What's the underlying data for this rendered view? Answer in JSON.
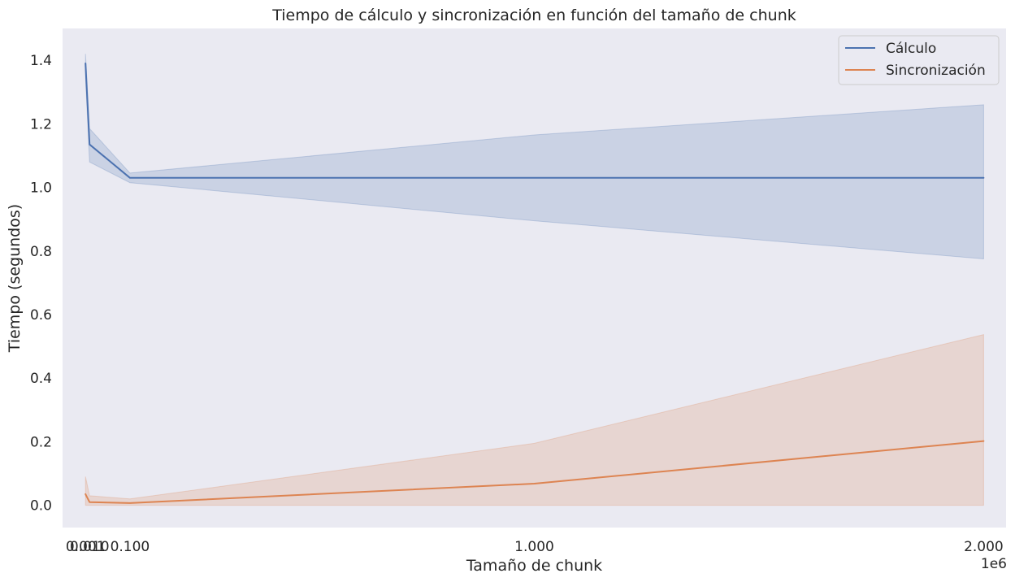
{
  "chart_data": {
    "type": "line",
    "title": "Tiempo de cálculo y sincronización en función del tamaño de chunk",
    "xlabel": "Tamaño de chunk",
    "ylabel": "Tiempo (segundos)",
    "x_offset_label": "1e6",
    "xlim": [
      -0.05,
      2.05
    ],
    "ylim": [
      -0.07,
      1.5
    ],
    "x_ticks": [
      {
        "value": 0.001,
        "label": "0.001"
      },
      {
        "value": 0.01,
        "label": "0.010"
      },
      {
        "value": 0.1,
        "label": "0.100"
      },
      {
        "value": 1.0,
        "label": "1.000"
      },
      {
        "value": 2.0,
        "label": "2.000"
      }
    ],
    "y_ticks": [
      {
        "value": 0.0,
        "label": "0.0"
      },
      {
        "value": 0.2,
        "label": "0.2"
      },
      {
        "value": 0.4,
        "label": "0.4"
      },
      {
        "value": 0.6,
        "label": "0.6"
      },
      {
        "value": 0.8,
        "label": "0.8"
      },
      {
        "value": 1.0,
        "label": "1.0"
      },
      {
        "value": 1.2,
        "label": "1.2"
      },
      {
        "value": 1.4,
        "label": "1.4"
      }
    ],
    "grid": false,
    "background": "#eaeaf2",
    "legend_position": "top-right",
    "x": [
      0.001,
      0.01,
      0.1,
      1.0,
      2.0
    ],
    "series": [
      {
        "name": "Cálculo",
        "color": "#4c72b0",
        "values": [
          1.39,
          1.135,
          1.03,
          1.03,
          1.03
        ],
        "ci_lower": [
          1.35,
          1.08,
          1.015,
          0.895,
          0.775
        ],
        "ci_upper": [
          1.42,
          1.185,
          1.045,
          1.165,
          1.26
        ]
      },
      {
        "name": "Sincronización",
        "color": "#dd8452",
        "values": [
          0.035,
          0.01,
          0.007,
          0.068,
          0.202
        ],
        "ci_lower": [
          0.0,
          0.0,
          0.0,
          0.0,
          0.0
        ],
        "ci_upper": [
          0.09,
          0.03,
          0.02,
          0.195,
          0.537
        ]
      }
    ]
  }
}
